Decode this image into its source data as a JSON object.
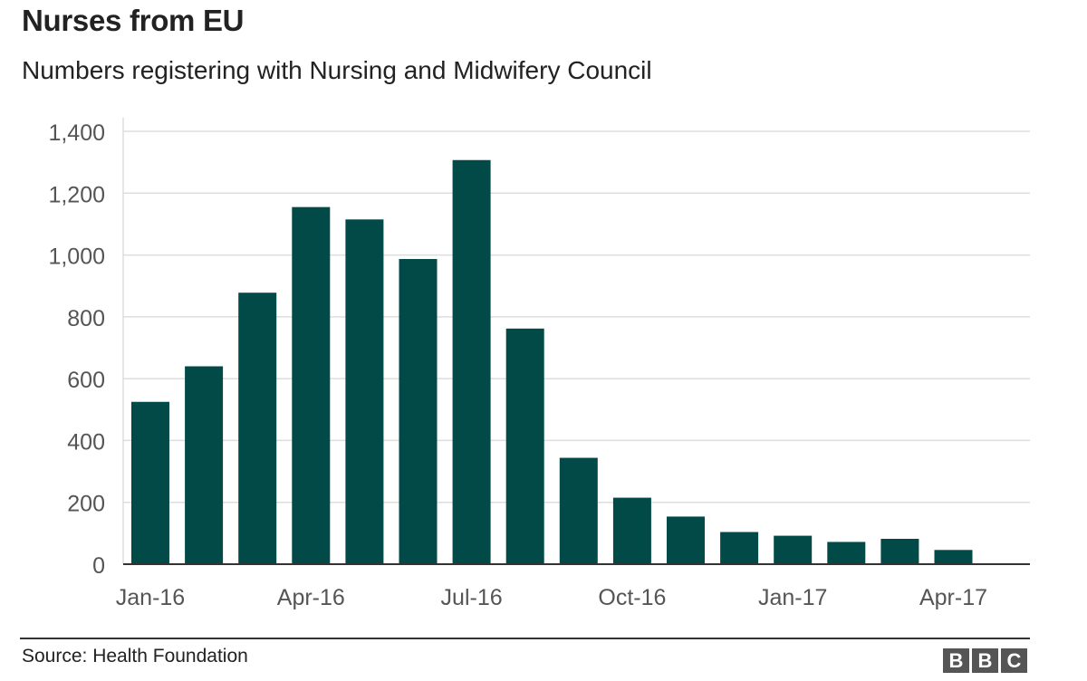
{
  "title": "Nurses from EU",
  "subtitle": "Numbers registering with Nursing and Midwifery Council",
  "source": "Source: Health Foundation",
  "logo": [
    "B",
    "B",
    "C"
  ],
  "colors": {
    "bar": "#024a47",
    "grid": "#dddddd",
    "axis": "#333333",
    "text": "#555555"
  },
  "chart_data": {
    "type": "bar",
    "title": "Nurses from EU",
    "subtitle": "Numbers registering with Nursing and Midwifery Council",
    "categories": [
      "Jan-16",
      "Feb-16",
      "Mar-16",
      "Apr-16",
      "May-16",
      "Jun-16",
      "Jul-16",
      "Aug-16",
      "Sep-16",
      "Oct-16",
      "Nov-16",
      "Dec-16",
      "Jan-17",
      "Feb-17",
      "Mar-17",
      "Apr-17"
    ],
    "values": [
      525,
      640,
      878,
      1155,
      1115,
      987,
      1307,
      762,
      344,
      215,
      154,
      104,
      92,
      72,
      82,
      46
    ],
    "x_tick_labels": [
      "Jan-16",
      "Apr-16",
      "Jul-16",
      "Oct-16",
      "Jan-17",
      "Apr-17"
    ],
    "y_ticks": [
      0,
      200,
      400,
      600,
      800,
      1000,
      1200,
      1400
    ],
    "y_tick_labels": [
      "0",
      "200",
      "400",
      "600",
      "800",
      "1,000",
      "1,200",
      "1,400"
    ],
    "ylim": [
      0,
      1400
    ],
    "xlabel": "",
    "ylabel": "",
    "grid": true,
    "legend": "none"
  }
}
